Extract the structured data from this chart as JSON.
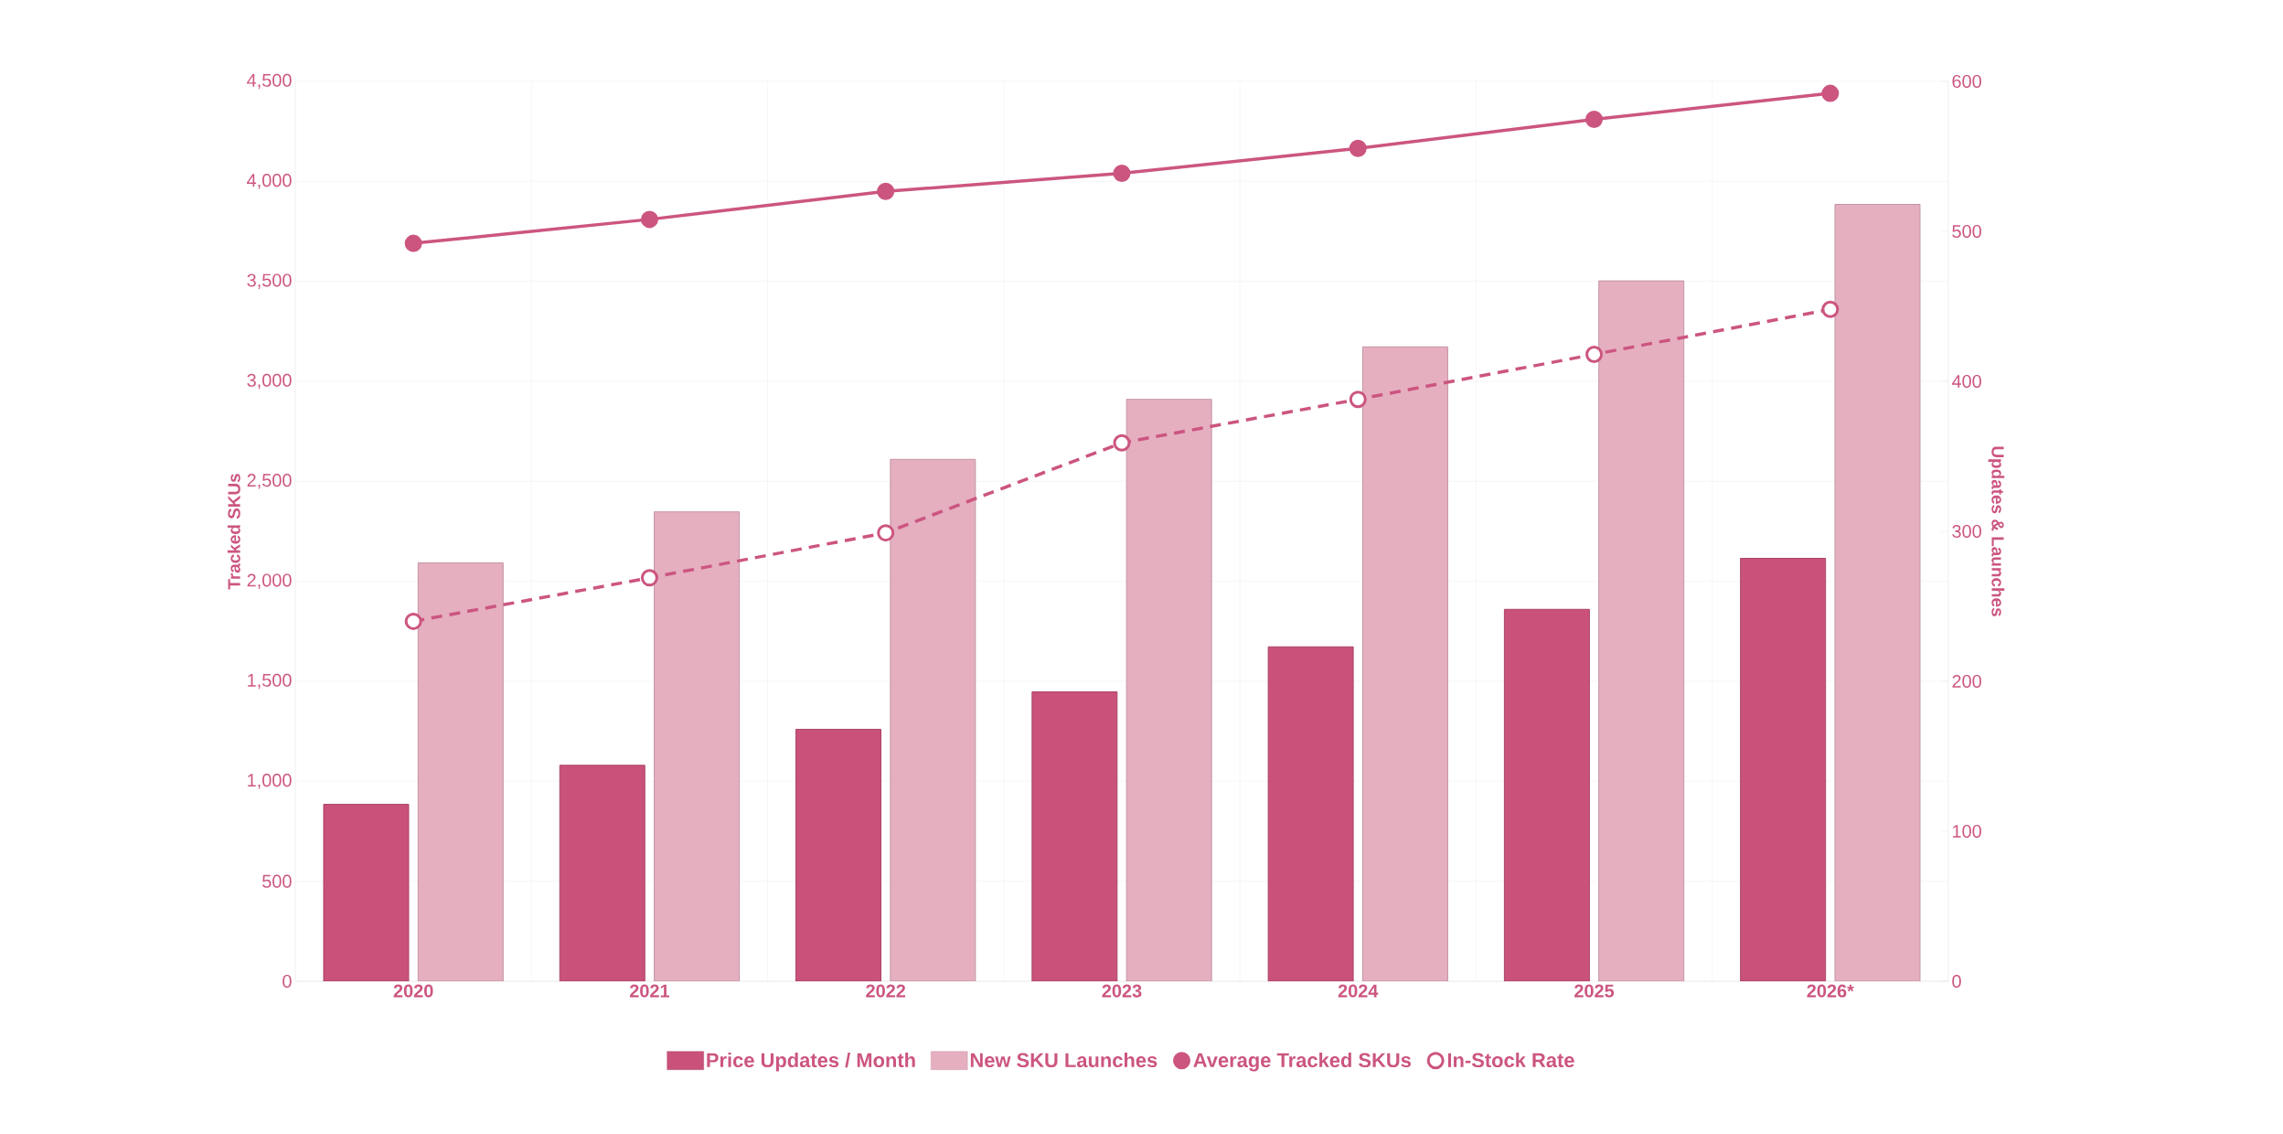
{
  "chart_data": {
    "type": "bar",
    "categories": [
      "2020",
      "2021",
      "2022",
      "2023",
      "2024",
      "2025",
      "2026*"
    ],
    "ylabel": "Tracked SKUs",
    "y2label": "Updates & Launches",
    "series": [
      {
        "name": "Price Updates / Month",
        "axis": "y2",
        "color": "#c9517a",
        "values": [
          118,
          144,
          168,
          193,
          223,
          248,
          282
        ]
      },
      {
        "name": "New SKU Launches",
        "axis": "y2",
        "color": "#e5afc0",
        "values": [
          279,
          313,
          348,
          388,
          423,
          467,
          518
        ]
      },
      {
        "name": "Average Tracked SKUs",
        "type": "line",
        "color": "#cc5580",
        "line_style": "solid",
        "values": [
          3690,
          3810,
          3950,
          4040,
          4165,
          4310,
          4440
        ]
      },
      {
        "name": "In-Stock Rate",
        "type": "line",
        "axis": "y2",
        "color": "#cc5580",
        "line_style": "dashed",
        "values": [
          240,
          269,
          299,
          359,
          388,
          418,
          448
        ]
      }
    ],
    "ylim": [
      0,
      4500
    ],
    "yticks": [
      0,
      {
        "value": 500,
        "label": "500"
      },
      {
        "value": 1000,
        "label": "1,000"
      },
      {
        "value": 1500,
        "label": "1,500"
      },
      {
        "value": 2000,
        "label": "2,000"
      },
      {
        "value": 2500,
        "label": "2,500"
      },
      {
        "value": 3000,
        "label": "3,000"
      },
      {
        "value": 3500,
        "label": "3,500"
      },
      {
        "value": 4000,
        "label": "4,000"
      },
      {
        "value": 4500,
        "label": "4,500"
      }
    ],
    "y2lim": [
      0,
      600
    ],
    "y2ticks": [
      0,
      100,
      200,
      300,
      400,
      500,
      600
    ],
    "grid": true,
    "legend": "bottom",
    "marker": "circle"
  }
}
